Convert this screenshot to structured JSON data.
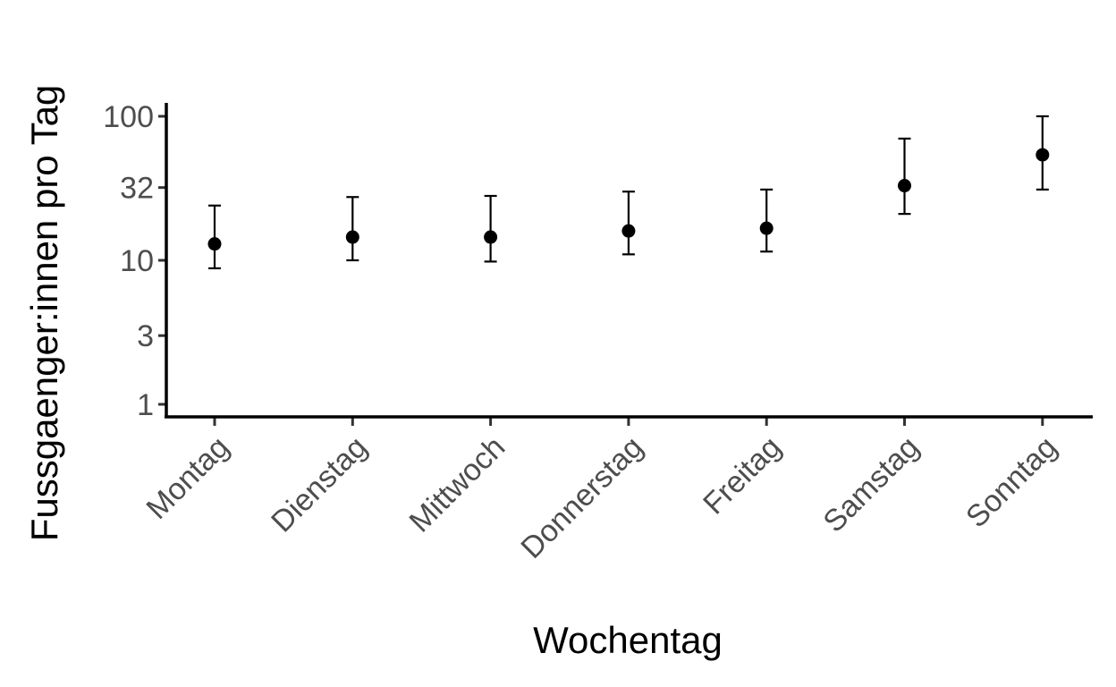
{
  "chart_data": {
    "type": "scatter",
    "xlabel": "Wochentag",
    "ylabel": "Fussgaenger:innen pro Tag",
    "y_scale": "log10",
    "ylim": [
      1,
      100
    ],
    "y_ticks": [
      1,
      3,
      10,
      32,
      100
    ],
    "y_tick_labels": [
      "1",
      "3",
      "10",
      "32",
      "100"
    ],
    "categories": [
      "Montag",
      "Dienstag",
      "Mittwoch",
      "Donnerstag",
      "Freitag",
      "Samstag",
      "Sonntag"
    ],
    "values": [
      13,
      14.5,
      14.5,
      16,
      16.7,
      33,
      54
    ],
    "error_lower": [
      8.8,
      10,
      9.8,
      11,
      11.5,
      21,
      31
    ],
    "error_upper": [
      24,
      27.5,
      28,
      30,
      31,
      70,
      100
    ],
    "grid": false,
    "legend": "none",
    "point_color": "#000000"
  }
}
